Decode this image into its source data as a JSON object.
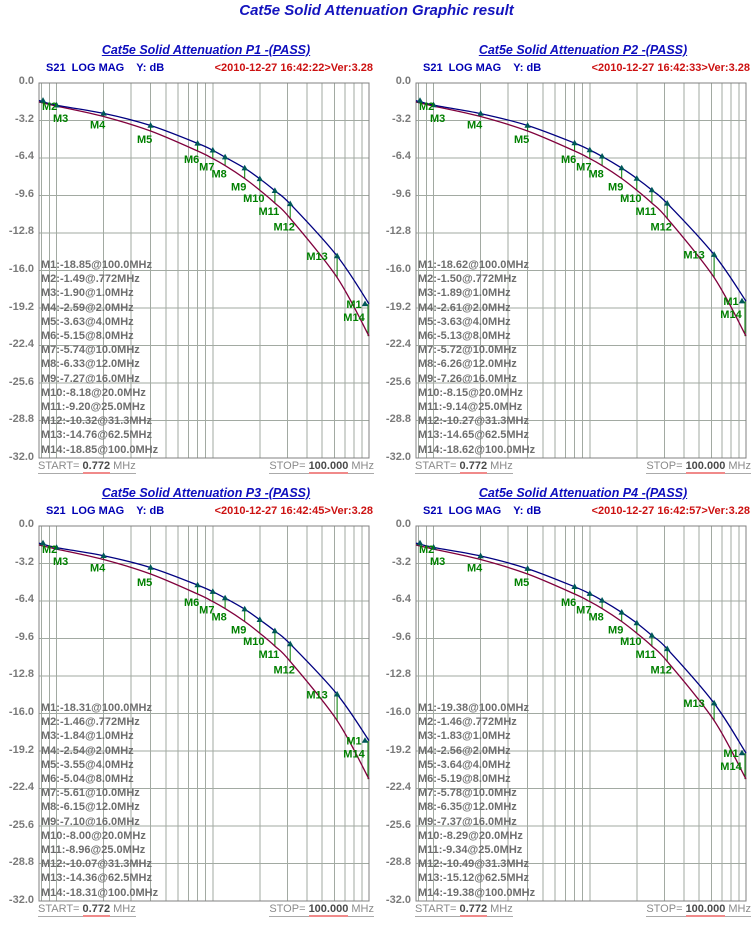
{
  "page_title": "Cat5e Solid Attenuation Graphic result",
  "colors": {
    "title_blue": "#1414be",
    "header_blue": "#0000b4",
    "timestamp_red": "#cc1111",
    "grid_gray": "#a2aaa2",
    "border_gray": "#808080",
    "measured_navy": "#000080",
    "limit_maroon": "#80003c",
    "marker_green": "#008000",
    "triangle_teal": "#005858",
    "readout_gray": "#6e6e6e"
  },
  "panels": [
    {
      "title": "Cat5e Solid Attenuation P1 -(PASS)",
      "header": "S21  LOG MAG    Y: dB",
      "timestamp": "<2010-12-27 16:42:22>Ver:3.28",
      "start_label": "START= ",
      "start_value": "0.772",
      "start_unit": " MHz",
      "stop_label": "STOP= ",
      "stop_value": "100.000",
      "stop_unit": " MHz",
      "marker_list": [
        "M1:-18.85@100.0MHz",
        "M2:-1.49@.772MHz",
        "M3:-1.90@1.0MHz",
        "M4:-2.59@2.0MHz",
        "M5:-3.63@4.0MHz",
        "M6:-5.15@8.0MHz",
        "M7:-5.74@10.0MHz",
        "M8:-6.33@12.0MHz",
        "M9:-7.27@16.0MHz",
        "M10:-8.18@20.0MHz",
        "M11:-9.20@25.0MHz",
        "M12:-10.32@31.3MHz",
        "M13:-14.76@62.5MHz",
        "M14:-18.85@100.0MHz"
      ]
    },
    {
      "title": "Cat5e Solid Attenuation P2 -(PASS)",
      "header": "S21  LOG MAG    Y: dB",
      "timestamp": "<2010-12-27 16:42:33>Ver:3.28",
      "start_label": "START= ",
      "start_value": "0.772",
      "start_unit": " MHz",
      "stop_label": "STOP= ",
      "stop_value": "100.000",
      "stop_unit": " MHz",
      "marker_list": [
        "M1:-18.62@100.0MHz",
        "M2:-1.50@.772MHz",
        "M3:-1.89@1.0MHz",
        "M4:-2.61@2.0MHz",
        "M5:-3.63@4.0MHz",
        "M6:-5.13@8.0MHz",
        "M7:-5.72@10.0MHz",
        "M8:-6.26@12.0MHz",
        "M9:-7.26@16.0MHz",
        "M10:-8.15@20.0MHz",
        "M11:-9.14@25.0MHz",
        "M12:-10.27@31.3MHz",
        "M13:-14.65@62.5MHz",
        "M14:-18.62@100.0MHz"
      ]
    },
    {
      "title": "Cat5e Solid Attenuation P3 -(PASS)",
      "header": "S21  LOG MAG    Y: dB",
      "timestamp": "<2010-12-27 16:42:45>Ver:3.28",
      "start_label": "START= ",
      "start_value": "0.772",
      "start_unit": " MHz",
      "stop_label": "STOP= ",
      "stop_value": "100.000",
      "stop_unit": " MHz",
      "marker_list": [
        "M1:-18.31@100.0MHz",
        "M2:-1.46@.772MHz",
        "M3:-1.84@1.0MHz",
        "M4:-2.54@2.0MHz",
        "M5:-3.55@4.0MHz",
        "M6:-5.04@8.0MHz",
        "M7:-5.61@10.0MHz",
        "M8:-6.15@12.0MHz",
        "M9:-7.10@16.0MHz",
        "M10:-8.00@20.0MHz",
        "M11:-8.96@25.0MHz",
        "M12:-10.07@31.3MHz",
        "M13:-14.36@62.5MHz",
        "M14:-18.31@100.0MHz"
      ]
    },
    {
      "title": "Cat5e Solid Attenuation P4 -(PASS)",
      "header": "S21  LOG MAG    Y: dB",
      "timestamp": "<2010-12-27 16:42:57>Ver:3.28",
      "start_label": "START= ",
      "start_value": "0.772",
      "start_unit": " MHz",
      "stop_label": "STOP= ",
      "stop_value": "100.000",
      "stop_unit": " MHz",
      "marker_list": [
        "M1:-19.38@100.0MHz",
        "M2:-1.46@.772MHz",
        "M3:-1.83@1.0MHz",
        "M4:-2.56@2.0MHz",
        "M5:-3.64@4.0MHz",
        "M6:-5.19@8.0MHz",
        "M7:-5.78@10.0MHz",
        "M8:-6.35@12.0MHz",
        "M9:-7.37@16.0MHz",
        "M10:-8.29@20.0MHz",
        "M11:-9.34@25.0MHz",
        "M12:-10.49@31.3MHz",
        "M13:-15.12@62.5MHz",
        "M14:-19.38@100.0MHz"
      ]
    }
  ],
  "chart_data": [
    {
      "type": "line",
      "title": "Cat5e Solid Attenuation P1 -(PASS)",
      "xscale": "log",
      "xlim_mhz": [
        0.772,
        100
      ],
      "ylim_db": [
        -32,
        0
      ],
      "ylabel": "dB",
      "xlabel": "MHz",
      "grid": true,
      "ytick_labels": [
        "0.0",
        "-3.2",
        "-6.4",
        "-9.6",
        "-12.8",
        "-16.0",
        "-19.2",
        "-22.4",
        "-25.6",
        "-28.8",
        "-32.0"
      ],
      "grid_freqs_mhz": [
        0.8,
        0.9,
        1,
        2,
        3,
        4,
        5,
        6,
        7,
        8,
        9,
        10,
        20,
        30,
        40,
        50,
        60,
        70,
        80,
        90,
        100
      ],
      "x_mhz": [
        0.772,
        1,
        2,
        4,
        8,
        10,
        12,
        16,
        20,
        25,
        31.3,
        62.5,
        100
      ],
      "series": [
        {
          "name": "S21 measured",
          "color": "#000080",
          "values": [
            -1.49,
            -1.9,
            -2.59,
            -3.63,
            -5.15,
            -5.74,
            -6.33,
            -7.27,
            -8.18,
            -9.2,
            -10.32,
            -14.76,
            -18.85
          ]
        },
        {
          "name": "limit line",
          "color": "#80003c",
          "values": [
            -1.62,
            -1.97,
            -2.86,
            -4.1,
            -5.8,
            -6.45,
            -7.05,
            -8.15,
            -9.15,
            -10.25,
            -11.55,
            -16.6,
            -21.6
          ]
        }
      ],
      "point_markers": [
        "M2",
        "M3",
        "M4",
        "M5",
        "M6",
        "M7",
        "M8",
        "M9",
        "M10",
        "M11",
        "M12",
        "M13",
        "M14"
      ],
      "right_edge_marker": "M1"
    },
    {
      "type": "line",
      "title": "Cat5e Solid Attenuation P2 -(PASS)",
      "xscale": "log",
      "xlim_mhz": [
        0.772,
        100
      ],
      "ylim_db": [
        -32,
        0
      ],
      "ylabel": "dB",
      "xlabel": "MHz",
      "grid": true,
      "ytick_labels": [
        "0.0",
        "-3.2",
        "-6.4",
        "-9.6",
        "-12.8",
        "-16.0",
        "-19.2",
        "-22.4",
        "-25.6",
        "-28.8",
        "-32.0"
      ],
      "grid_freqs_mhz": [
        0.8,
        0.9,
        1,
        2,
        3,
        4,
        5,
        6,
        7,
        8,
        9,
        10,
        20,
        30,
        40,
        50,
        60,
        70,
        80,
        90,
        100
      ],
      "x_mhz": [
        0.772,
        1,
        2,
        4,
        8,
        10,
        12,
        16,
        20,
        25,
        31.3,
        62.5,
        100
      ],
      "series": [
        {
          "name": "S21 measured",
          "color": "#000080",
          "values": [
            -1.5,
            -1.89,
            -2.61,
            -3.63,
            -5.13,
            -5.72,
            -6.26,
            -7.26,
            -8.15,
            -9.14,
            -10.27,
            -14.65,
            -18.62
          ]
        },
        {
          "name": "limit line",
          "color": "#80003c",
          "values": [
            -1.62,
            -1.97,
            -2.86,
            -4.1,
            -5.8,
            -6.45,
            -7.05,
            -8.15,
            -9.15,
            -10.25,
            -11.55,
            -16.6,
            -21.6
          ]
        }
      ],
      "point_markers": [
        "M2",
        "M3",
        "M4",
        "M5",
        "M6",
        "M7",
        "M8",
        "M9",
        "M10",
        "M11",
        "M12",
        "M13",
        "M14"
      ],
      "right_edge_marker": "M1"
    },
    {
      "type": "line",
      "title": "Cat5e Solid Attenuation P3 -(PASS)",
      "xscale": "log",
      "xlim_mhz": [
        0.772,
        100
      ],
      "ylim_db": [
        -32,
        0
      ],
      "ylabel": "dB",
      "xlabel": "MHz",
      "grid": true,
      "ytick_labels": [
        "0.0",
        "-3.2",
        "-6.4",
        "-9.6",
        "-12.8",
        "-16.0",
        "-19.2",
        "-22.4",
        "-25.6",
        "-28.8",
        "-32.0"
      ],
      "grid_freqs_mhz": [
        0.8,
        0.9,
        1,
        2,
        3,
        4,
        5,
        6,
        7,
        8,
        9,
        10,
        20,
        30,
        40,
        50,
        60,
        70,
        80,
        90,
        100
      ],
      "x_mhz": [
        0.772,
        1,
        2,
        4,
        8,
        10,
        12,
        16,
        20,
        25,
        31.3,
        62.5,
        100
      ],
      "series": [
        {
          "name": "S21 measured",
          "color": "#000080",
          "values": [
            -1.46,
            -1.84,
            -2.54,
            -3.55,
            -5.04,
            -5.61,
            -6.15,
            -7.1,
            -8.0,
            -8.96,
            -10.07,
            -14.36,
            -18.31
          ]
        },
        {
          "name": "limit line",
          "color": "#80003c",
          "values": [
            -1.62,
            -1.97,
            -2.86,
            -4.1,
            -5.8,
            -6.45,
            -7.05,
            -8.15,
            -9.15,
            -10.25,
            -11.55,
            -16.6,
            -21.6
          ]
        }
      ],
      "point_markers": [
        "M2",
        "M3",
        "M4",
        "M5",
        "M6",
        "M7",
        "M8",
        "M9",
        "M10",
        "M11",
        "M12",
        "M13",
        "M14"
      ],
      "right_edge_marker": "M1"
    },
    {
      "type": "line",
      "title": "Cat5e Solid Attenuation P4 -(PASS)",
      "xscale": "log",
      "xlim_mhz": [
        0.772,
        100
      ],
      "ylim_db": [
        -32,
        0
      ],
      "ylabel": "dB",
      "xlabel": "MHz",
      "grid": true,
      "ytick_labels": [
        "0.0",
        "-3.2",
        "-6.4",
        "-9.6",
        "-12.8",
        "-16.0",
        "-19.2",
        "-22.4",
        "-25.6",
        "-28.8",
        "-32.0"
      ],
      "grid_freqs_mhz": [
        0.8,
        0.9,
        1,
        2,
        3,
        4,
        5,
        6,
        7,
        8,
        9,
        10,
        20,
        30,
        40,
        50,
        60,
        70,
        80,
        90,
        100
      ],
      "x_mhz": [
        0.772,
        1,
        2,
        4,
        8,
        10,
        12,
        16,
        20,
        25,
        31.3,
        62.5,
        100
      ],
      "series": [
        {
          "name": "S21 measured",
          "color": "#000080",
          "values": [
            -1.46,
            -1.83,
            -2.56,
            -3.64,
            -5.19,
            -5.78,
            -6.35,
            -7.37,
            -8.29,
            -9.34,
            -10.49,
            -15.12,
            -19.38
          ]
        },
        {
          "name": "limit line",
          "color": "#80003c",
          "values": [
            -1.62,
            -1.97,
            -2.86,
            -4.1,
            -5.8,
            -6.45,
            -7.05,
            -8.15,
            -9.15,
            -10.25,
            -11.55,
            -16.6,
            -21.6
          ]
        }
      ],
      "point_markers": [
        "M2",
        "M3",
        "M4",
        "M5",
        "M6",
        "M7",
        "M8",
        "M9",
        "M10",
        "M11",
        "M12",
        "M13",
        "M14"
      ],
      "right_edge_marker": "M1"
    }
  ]
}
